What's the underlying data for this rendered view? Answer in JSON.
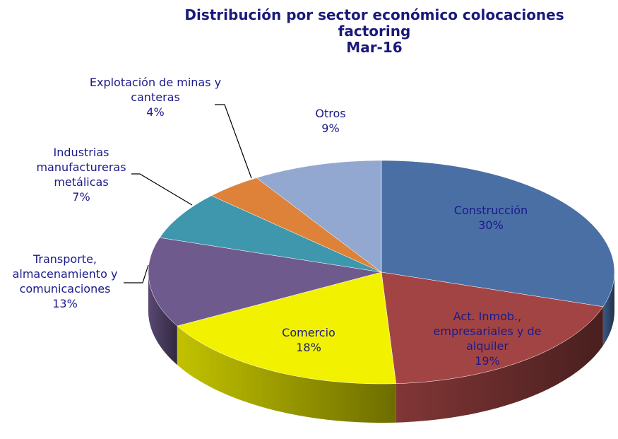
{
  "chart_data": {
    "type": "pie3d",
    "title": "Distribución por sector económico colocaciones factoring",
    "subtitle": "Mar-16",
    "categories": [
      "Construcción",
      "Act. Inmob., empresariales y de alquiler",
      "Comercio",
      "Transporte, almacenamiento y comunicaciones",
      "Industrias manufactureras metálicas",
      "Explotación de minas y canteras",
      "Otros"
    ],
    "values": [
      30,
      19,
      18,
      13,
      7,
      4,
      9
    ],
    "value_labels": [
      "30%",
      "19%",
      "18%",
      "13%",
      "7%",
      "4%",
      "9%"
    ],
    "colors": [
      "#4a6fa5",
      "#a34444",
      "#f2f200",
      "#6f5a8e",
      "#3e97ad",
      "#dd8238",
      "#93a8d0"
    ]
  }
}
